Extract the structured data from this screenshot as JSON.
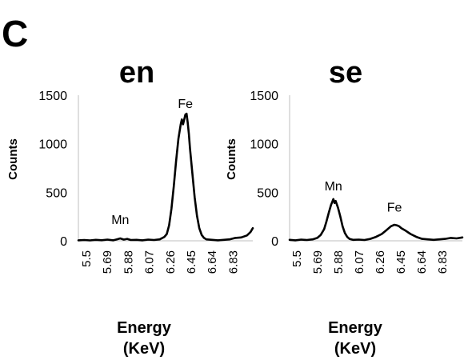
{
  "panel_letter": "C",
  "chart_data": [
    {
      "type": "line",
      "title": "en",
      "ylabel": "Counts",
      "xlabel_lines": [
        "Energy",
        "(KeV)"
      ],
      "ylim": [
        0,
        1500
      ],
      "yticks": [
        0,
        500,
        1000,
        1500
      ],
      "xlim": [
        5.5,
        7.0
      ],
      "xticks": [
        "5.5",
        "5.69",
        "5.88",
        "6.07",
        "6.26",
        "6.45",
        "6.64",
        "6.83"
      ],
      "grid": false,
      "annotations": [
        {
          "text": "Mn",
          "x": 5.86,
          "y": 175
        },
        {
          "text": "Fe",
          "x": 6.42,
          "y": 1370
        }
      ],
      "series": [
        {
          "x": [
            5.5,
            5.55,
            5.6,
            5.65,
            5.7,
            5.75,
            5.8,
            5.83,
            5.86,
            5.89,
            5.92,
            5.95,
            6.0,
            6.05,
            6.1,
            6.15,
            6.2,
            6.24,
            6.26,
            6.28,
            6.3,
            6.32,
            6.34,
            6.36,
            6.38,
            6.39,
            6.4,
            6.41,
            6.42,
            6.43,
            6.44,
            6.45,
            6.46,
            6.48,
            6.5,
            6.52,
            6.54,
            6.56,
            6.58,
            6.6,
            6.65,
            6.7,
            6.75,
            6.8,
            6.85,
            6.9,
            6.95,
            6.98,
            7.0
          ],
          "y": [
            5,
            8,
            4,
            10,
            6,
            12,
            5,
            15,
            25,
            12,
            20,
            8,
            10,
            5,
            12,
            8,
            15,
            40,
            70,
            160,
            330,
            560,
            820,
            1050,
            1200,
            1250,
            1200,
            1250,
            1300,
            1310,
            1220,
            1100,
            950,
            700,
            450,
            260,
            130,
            60,
            30,
            15,
            10,
            5,
            10,
            15,
            30,
            35,
            55,
            90,
            130
          ]
        }
      ]
    },
    {
      "type": "line",
      "title": "se",
      "ylabel": "Counts",
      "xlabel_lines": [
        "Energy",
        "(KeV)"
      ],
      "ylim": [
        0,
        1500
      ],
      "yticks": [
        0,
        500,
        1000,
        1500
      ],
      "xlim": [
        5.5,
        7.0
      ],
      "xticks": [
        "5.5",
        "5.69",
        "5.88",
        "6.07",
        "6.26",
        "6.45",
        "6.64",
        "6.83"
      ],
      "grid": false,
      "annotations": [
        {
          "text": "Mn",
          "x": 5.88,
          "y": 520
        },
        {
          "text": "Fe",
          "x": 6.41,
          "y": 300
        }
      ],
      "series": [
        {
          "x": [
            5.5,
            5.55,
            5.6,
            5.65,
            5.7,
            5.74,
            5.77,
            5.8,
            5.82,
            5.84,
            5.86,
            5.87,
            5.88,
            5.89,
            5.9,
            5.92,
            5.94,
            5.96,
            5.98,
            6.0,
            6.02,
            6.05,
            6.1,
            6.15,
            6.2,
            6.25,
            6.3,
            6.34,
            6.38,
            6.41,
            6.43,
            6.45,
            6.47,
            6.5,
            6.55,
            6.6,
            6.65,
            6.7,
            6.75,
            6.8,
            6.85,
            6.9,
            6.95,
            7.0
          ],
          "y": [
            10,
            5,
            12,
            8,
            15,
            30,
            60,
            120,
            200,
            290,
            370,
            400,
            430,
            390,
            410,
            340,
            250,
            150,
            80,
            40,
            20,
            10,
            12,
            8,
            20,
            40,
            70,
            110,
            150,
            165,
            160,
            150,
            130,
            110,
            70,
            40,
            20,
            15,
            10,
            15,
            20,
            30,
            25,
            35
          ]
        }
      ]
    }
  ]
}
